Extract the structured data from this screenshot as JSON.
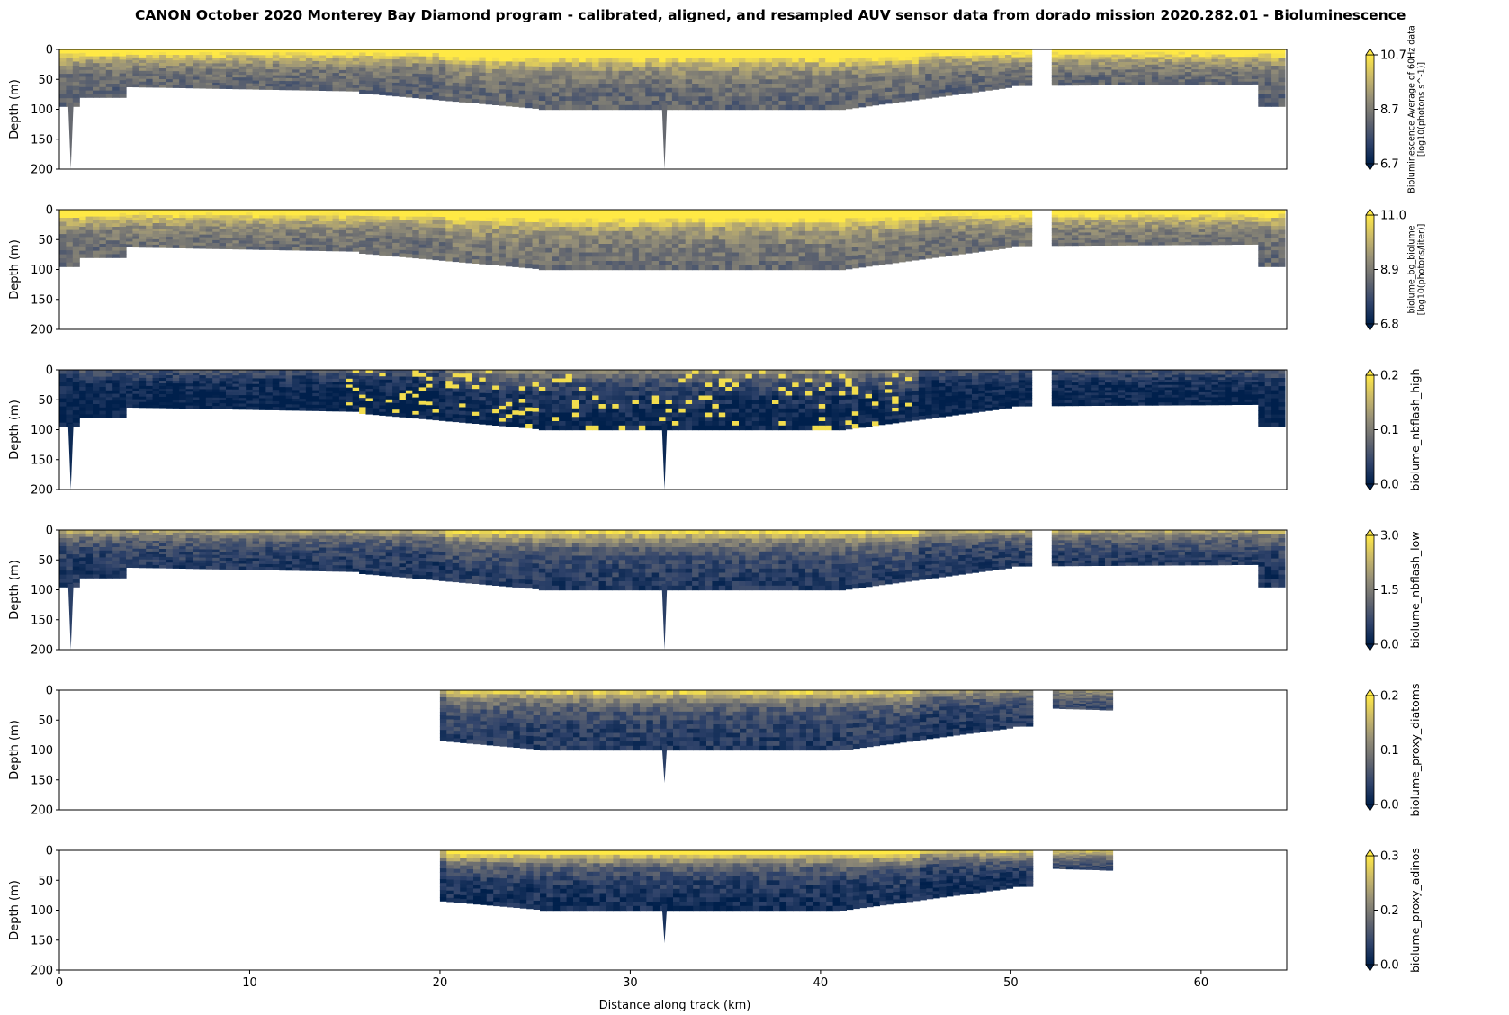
{
  "title": "CANON October 2020 Monterey Bay Diamond program - calibrated, aligned, and resampled AUV sensor data from dorado mission 2020.282.01 - Bioluminescence",
  "chart_data": {
    "type": "heatmap",
    "xlabel": "Distance along track (km)",
    "x_ticks": [
      0,
      10,
      20,
      30,
      40,
      50,
      60
    ],
    "xlim": [
      0,
      64.5
    ],
    "colormap": [
      "#00204c",
      "#31446b",
      "#666970",
      "#958f78",
      "#cbba69",
      "#ffe945"
    ],
    "panels": [
      {
        "ylabel": "Depth (m)",
        "ylim": [
          0,
          200
        ],
        "y_ticks": [
          0,
          50,
          100,
          150,
          200
        ],
        "colorbar_label": "Bioluminescence Average of 60Hz data\n[log10(photons s^-1)]",
        "colorbar_ticks": [
          "6.7",
          "8.7",
          "10.7"
        ],
        "x_start": 0,
        "x_end": 64.2,
        "bright_surface": 0.85,
        "base_level": 0.35,
        "deep_spikes": [
          0.6,
          31.8
        ]
      },
      {
        "ylabel": "Depth (m)",
        "ylim": [
          0,
          200
        ],
        "y_ticks": [
          0,
          50,
          100,
          150,
          200
        ],
        "colorbar_label": "biolume_bg_biolume\n[log10(photons/liter)]",
        "colorbar_ticks": [
          "6.8",
          "8.9",
          "11.0"
        ],
        "x_start": 0,
        "x_end": 64.2,
        "bright_surface": 0.85,
        "base_level": 0.4,
        "deep_spikes": []
      },
      {
        "ylabel": "Depth (m)",
        "ylim": [
          0,
          200
        ],
        "y_ticks": [
          0,
          50,
          100,
          150,
          200
        ],
        "colorbar_label": "biolume_nbflash_high",
        "colorbar_ticks": [
          "0.0",
          "0.1",
          "0.2"
        ],
        "x_start": 0,
        "x_end": 64.2,
        "bright_surface": 0.3,
        "base_level": 0.0,
        "deep_spikes": [
          0.6,
          31.8
        ]
      },
      {
        "ylabel": "Depth (m)",
        "ylim": [
          0,
          200
        ],
        "y_ticks": [
          0,
          50,
          100,
          150,
          200
        ],
        "colorbar_label": "biolume_nbflash_low",
        "colorbar_ticks": [
          "0.0",
          "1.5",
          "3.0"
        ],
        "x_start": 0,
        "x_end": 64.2,
        "bright_surface": 0.6,
        "base_level": 0.12,
        "deep_spikes": [
          0.6,
          31.8
        ]
      },
      {
        "ylabel": "Depth (m)",
        "ylim": [
          0,
          200
        ],
        "y_ticks": [
          0,
          50,
          100,
          150,
          200
        ],
        "colorbar_label": "biolume_proxy_diatoms",
        "colorbar_ticks": [
          "0.0",
          "0.1",
          "0.2"
        ],
        "x_start": 20,
        "x_end": 55.2,
        "bright_surface": 0.5,
        "base_level": 0.12,
        "deep_spikes": [
          31.8
        ]
      },
      {
        "ylabel": "Depth (m)",
        "ylim": [
          0,
          200
        ],
        "y_ticks": [
          0,
          50,
          100,
          150,
          200
        ],
        "colorbar_label": "biolume_proxy_adinos",
        "colorbar_ticks": [
          "0.0",
          "0.2",
          "0.3"
        ],
        "x_start": 20,
        "x_end": 55.2,
        "bright_surface": 0.8,
        "base_level": 0.05,
        "deep_spikes": [
          31.8
        ]
      }
    ]
  }
}
